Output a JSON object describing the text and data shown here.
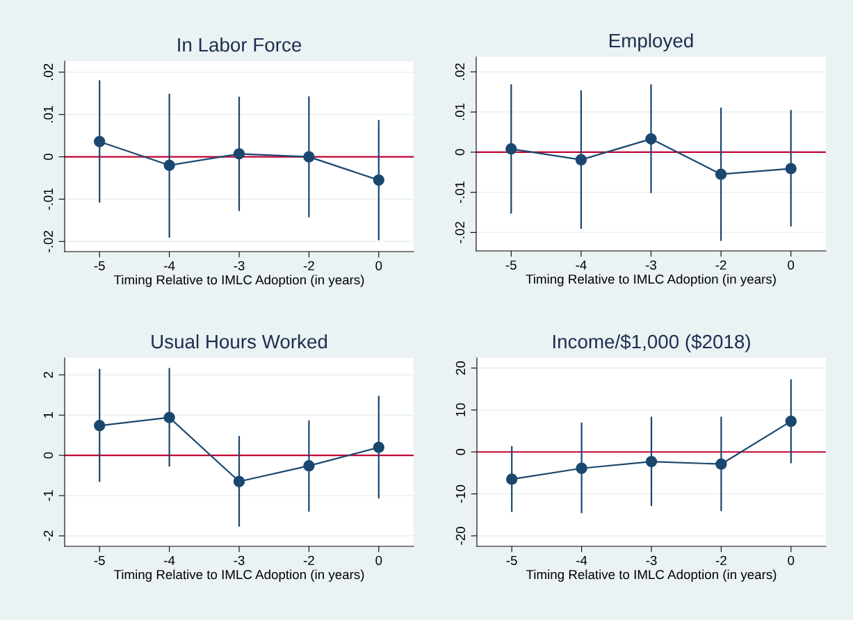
{
  "chart_data": [
    {
      "type": "line",
      "title": "In Labor Force",
      "xlabel": "Timing Relative to IMLC Adoption (in years)",
      "categories": [
        "-5",
        "-4",
        "-3",
        "-2",
        "0"
      ],
      "series": [
        {
          "color": "#1a476f",
          "values": [
            0.0036,
            -0.002,
            0.0007,
            0.0,
            -0.0055
          ],
          "errors": [
            [
              -0.0108,
              0.0181
            ],
            [
              -0.0191,
              0.0149
            ],
            [
              -0.0128,
              0.0142
            ],
            [
              -0.0143,
              0.0143
            ],
            [
              -0.0197,
              0.0087
            ]
          ]
        }
      ],
      "ylim": [
        -0.0224,
        0.0226
      ],
      "yticks": [
        {
          "value": -0.02,
          "label": "-.02"
        },
        {
          "value": -0.01,
          "label": "-.01"
        },
        0,
        {
          "value": 0.01,
          "label": ".01"
        },
        {
          "value": 0.02,
          "label": ".02"
        }
      ],
      "ref_lines": [
        {
          "axis": "y",
          "value": 0,
          "color": "#c10534"
        }
      ],
      "grid": "y",
      "marker": "circle",
      "line_style": "solid"
    },
    {
      "type": "line",
      "title": "Employed",
      "xlabel": "Timing Relative to IMLC Adoption (in years)",
      "categories": [
        "-5",
        "-4",
        "-3",
        "-2",
        "0"
      ],
      "series": [
        {
          "color": "#1a476f",
          "values": [
            0.0008,
            -0.0019,
            0.0033,
            -0.0055,
            -0.0041
          ],
          "errors": [
            [
              -0.0153,
              0.0169
            ],
            [
              -0.0191,
              0.0154
            ],
            [
              -0.0102,
              0.0169
            ],
            [
              -0.0221,
              0.0111
            ],
            [
              -0.0185,
              0.0105
            ]
          ]
        }
      ],
      "ylim": [
        -0.0246,
        0.0237
      ],
      "yticks": [
        {
          "value": -0.02,
          "label": "-.02"
        },
        {
          "value": -0.01,
          "label": "-.01"
        },
        0,
        {
          "value": 0.01,
          "label": ".01"
        },
        {
          "value": 0.02,
          "label": ".02"
        }
      ],
      "ref_lines": [
        {
          "axis": "y",
          "value": 0,
          "color": "#c10534"
        }
      ],
      "grid": "y",
      "marker": "circle",
      "line_style": "solid"
    },
    {
      "type": "line",
      "title": "Usual Hours Worked",
      "xlabel": "Timing Relative to IMLC Adoption (in years)",
      "categories": [
        "-5",
        "-4",
        "-3",
        "-2",
        "0"
      ],
      "series": [
        {
          "color": "#1a476f",
          "values": [
            0.74,
            0.94,
            -0.65,
            -0.26,
            0.2
          ],
          "errors": [
            [
              -0.66,
              2.15
            ],
            [
              -0.28,
              2.17
            ],
            [
              -1.77,
              0.48
            ],
            [
              -1.4,
              0.87
            ],
            [
              -1.07,
              1.48
            ]
          ]
        }
      ],
      "ylim": [
        -2.26,
        2.42
      ],
      "yticks": [
        -2,
        -1,
        0,
        1,
        2
      ],
      "ref_lines": [
        {
          "axis": "y",
          "value": 0,
          "color": "#c10534"
        }
      ],
      "grid": "y",
      "marker": "circle",
      "line_style": "solid"
    },
    {
      "type": "line",
      "title": "Income/$1,000 ($2018)",
      "xlabel": "Timing Relative to IMLC Adoption (in years)",
      "categories": [
        "-5",
        "-4",
        "-3",
        "-2",
        "0"
      ],
      "series": [
        {
          "color": "#1a476f",
          "values": [
            -6.5,
            -3.9,
            -2.3,
            -2.9,
            7.3
          ],
          "errors": [
            [
              -14.3,
              1.4
            ],
            [
              -14.6,
              7.0
            ],
            [
              -12.9,
              8.4
            ],
            [
              -14.1,
              8.4
            ],
            [
              -2.7,
              17.3
            ]
          ]
        }
      ],
      "ylim": [
        -22.5,
        22.4
      ],
      "yticks": [
        -20,
        -10,
        0,
        10,
        20
      ],
      "ref_lines": [
        {
          "axis": "y",
          "value": 0,
          "color": "#c10534"
        }
      ],
      "grid": "y",
      "marker": "circle",
      "line_style": "solid"
    }
  ]
}
